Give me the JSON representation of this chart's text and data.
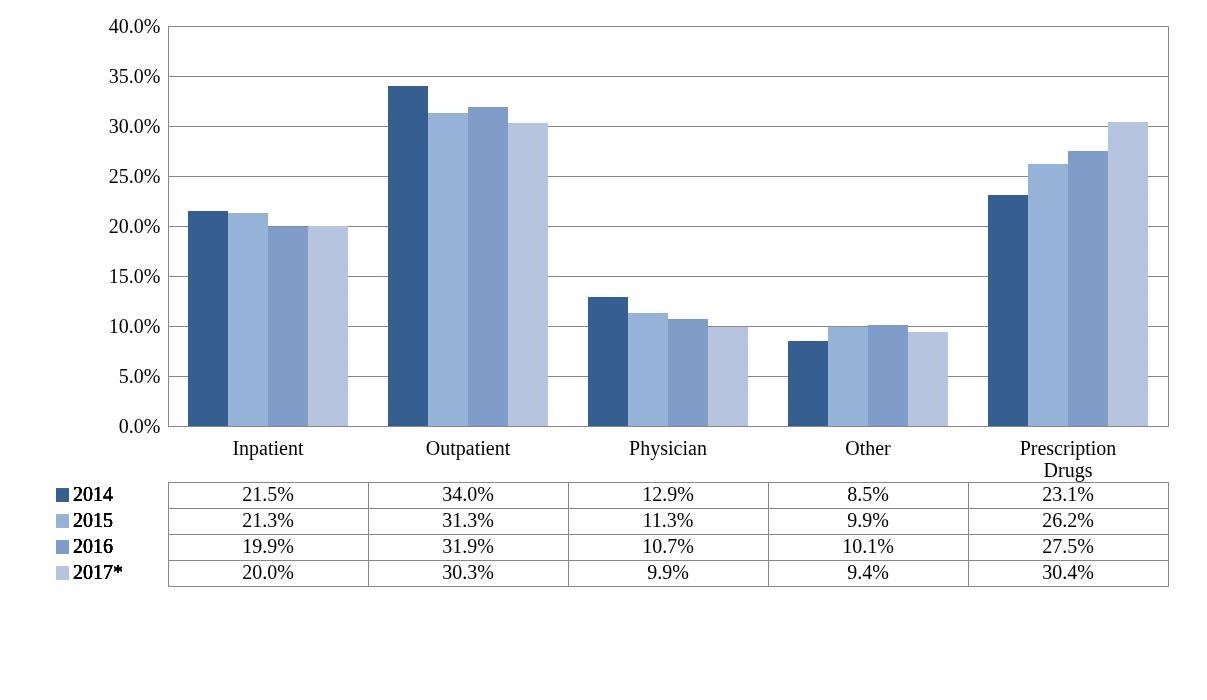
{
  "chart_data": {
    "type": "bar",
    "categories": [
      "Inpatient",
      "Outpatient",
      "Physician",
      "Other",
      "Prescription Drugs"
    ],
    "series": [
      {
        "name": "2014",
        "color": "#365f91",
        "values": [
          21.5,
          34.0,
          12.9,
          8.5,
          23.1
        ],
        "value_labels": [
          "21.5%",
          "34.0%",
          "12.9%",
          "8.5%",
          "23.1%"
        ]
      },
      {
        "name": "2015",
        "color": "#95b3d7",
        "values": [
          21.3,
          31.3,
          11.3,
          9.9,
          26.2
        ],
        "value_labels": [
          "21.3%",
          "31.3%",
          "11.3%",
          "9.9%",
          "26.2%"
        ]
      },
      {
        "name": "2016",
        "color": "#7f9cc9",
        "values": [
          19.9,
          31.9,
          10.7,
          10.1,
          27.5
        ],
        "value_labels": [
          "19.9%",
          "31.9%",
          "10.7%",
          "10.1%",
          "27.5%"
        ]
      },
      {
        "name": "2017*",
        "color": "#b7c4df",
        "values": [
          20.0,
          30.3,
          9.9,
          9.4,
          30.4
        ],
        "value_labels": [
          "20.0%",
          "30.3%",
          "9.9%",
          "9.4%",
          "30.4%"
        ]
      }
    ],
    "ylim": [
      0,
      40
    ],
    "yticks": [
      {
        "value": 0,
        "label": "0.0%"
      },
      {
        "value": 5,
        "label": "5.0%"
      },
      {
        "value": 10,
        "label": "10.0%"
      },
      {
        "value": 15,
        "label": "15.0%"
      },
      {
        "value": 20,
        "label": "20.0%"
      },
      {
        "value": 25,
        "label": "25.0%"
      },
      {
        "value": 30,
        "label": "30.0%"
      },
      {
        "value": 35,
        "label": "35.0%"
      },
      {
        "value": 40,
        "label": "40.0%"
      }
    ],
    "grid": "y",
    "legend": "bottom"
  }
}
